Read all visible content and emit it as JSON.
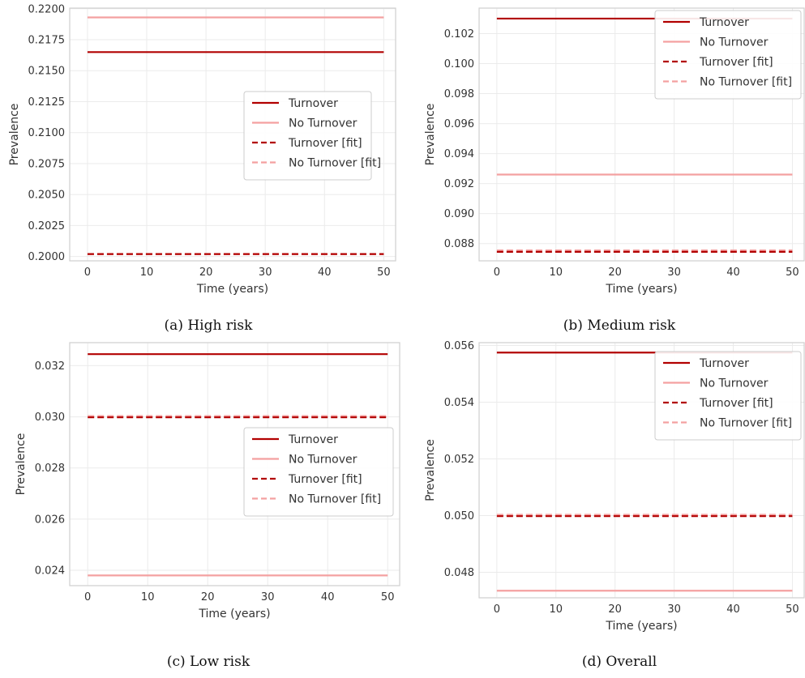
{
  "chart_data": [
    {
      "type": "line",
      "caption": "(a) High risk",
      "xlabel": "Time (years)",
      "ylabel": "Prevalence",
      "xlim": [
        -3,
        52
      ],
      "ylim": [
        0.19965,
        0.22005
      ],
      "xticks": [
        0,
        10,
        20,
        30,
        40,
        50
      ],
      "yticks": [
        0.2,
        0.2025,
        0.205,
        0.2075,
        0.21,
        0.2125,
        0.215,
        0.2175,
        0.22
      ],
      "ytick_labels": [
        "0.2000",
        "0.2025",
        "0.2050",
        "0.2075",
        "0.2100",
        "0.2125",
        "0.2150",
        "0.2175",
        "0.2200"
      ],
      "grid": true,
      "legend_position": "center-right",
      "series": [
        {
          "name": "Turnover",
          "color": "#b20000",
          "dash": "solid",
          "x": [
            0,
            50
          ],
          "y": [
            0.2165,
            0.2165
          ]
        },
        {
          "name": "No Turnover",
          "color": "#f4a0a0",
          "dash": "solid",
          "x": [
            0,
            50
          ],
          "y": [
            0.2193,
            0.2193
          ]
        },
        {
          "name": "Turnover [fit]",
          "color": "#b20000",
          "dash": "dashed",
          "x": [
            0,
            50
          ],
          "y": [
            0.2002,
            0.2002
          ]
        },
        {
          "name": "No Turnover [fit]",
          "color": "#f4a0a0",
          "dash": "dashed",
          "x": [
            0,
            50
          ],
          "y": [
            0.2002,
            0.2002
          ]
        }
      ]
    },
    {
      "type": "line",
      "caption": "(b) Medium risk",
      "xlabel": "Time (years)",
      "ylabel": "Prevalence",
      "xlim": [
        -3,
        52
      ],
      "ylim": [
        0.08685,
        0.1037
      ],
      "xticks": [
        0,
        10,
        20,
        30,
        40,
        50
      ],
      "yticks": [
        0.088,
        0.09,
        0.092,
        0.094,
        0.096,
        0.098,
        0.1,
        0.102
      ],
      "ytick_labels": [
        "0.088",
        "0.090",
        "0.092",
        "0.094",
        "0.096",
        "0.098",
        "0.100",
        "0.102"
      ],
      "grid": true,
      "legend_position": "top-right",
      "series": [
        {
          "name": "Turnover",
          "color": "#b20000",
          "dash": "solid",
          "x": [
            0,
            50
          ],
          "y": [
            0.103,
            0.103
          ]
        },
        {
          "name": "No Turnover",
          "color": "#f4a0a0",
          "dash": "solid",
          "x": [
            0,
            50
          ],
          "y": [
            0.0926,
            0.0926
          ]
        },
        {
          "name": "Turnover [fit]",
          "color": "#b20000",
          "dash": "dashed",
          "x": [
            0,
            50
          ],
          "y": [
            0.08745,
            0.08745
          ]
        },
        {
          "name": "No Turnover [fit]",
          "color": "#f4a0a0",
          "dash": "dashed",
          "x": [
            0,
            50
          ],
          "y": [
            0.08755,
            0.08755
          ]
        }
      ]
    },
    {
      "type": "line",
      "caption": "(c) Low risk",
      "xlabel": "Time (years)",
      "ylabel": "Prevalence",
      "xlim": [
        -3,
        52
      ],
      "ylim": [
        0.0234,
        0.0329
      ],
      "xticks": [
        0,
        10,
        20,
        30,
        40,
        50
      ],
      "yticks": [
        0.024,
        0.026,
        0.028,
        0.03,
        0.032
      ],
      "ytick_labels": [
        "0.024",
        "0.026",
        "0.028",
        "0.030",
        "0.032"
      ],
      "grid": true,
      "legend_position": "center-right",
      "series": [
        {
          "name": "Turnover",
          "color": "#b20000",
          "dash": "solid",
          "x": [
            0,
            50
          ],
          "y": [
            0.03245,
            0.03245
          ]
        },
        {
          "name": "No Turnover",
          "color": "#f4a0a0",
          "dash": "solid",
          "x": [
            0,
            50
          ],
          "y": [
            0.0238,
            0.0238
          ]
        },
        {
          "name": "Turnover [fit]",
          "color": "#b20000",
          "dash": "dashed",
          "x": [
            0,
            50
          ],
          "y": [
            0.02998,
            0.02998
          ]
        },
        {
          "name": "No Turnover [fit]",
          "color": "#f4a0a0",
          "dash": "dashed",
          "x": [
            0,
            50
          ],
          "y": [
            0.03003,
            0.03003
          ]
        }
      ]
    },
    {
      "type": "line",
      "caption": "(d) Overall",
      "xlabel": "Time (years)",
      "ylabel": "Prevalence",
      "xlim": [
        -3,
        52
      ],
      "ylim": [
        0.0471,
        0.0561
      ],
      "xticks": [
        0,
        10,
        20,
        30,
        40,
        50
      ],
      "yticks": [
        0.048,
        0.05,
        0.052,
        0.054,
        0.056
      ],
      "ytick_labels": [
        "0.048",
        "0.050",
        "0.052",
        "0.054",
        "0.056"
      ],
      "grid": true,
      "legend_position": "top-right",
      "series": [
        {
          "name": "Turnover",
          "color": "#b20000",
          "dash": "solid",
          "x": [
            0,
            50
          ],
          "y": [
            0.05575,
            0.05575
          ]
        },
        {
          "name": "No Turnover",
          "color": "#f4a0a0",
          "dash": "solid",
          "x": [
            0,
            50
          ],
          "y": [
            0.04735,
            0.04735
          ]
        },
        {
          "name": "Turnover [fit]",
          "color": "#b20000",
          "dash": "dashed",
          "x": [
            0,
            50
          ],
          "y": [
            0.04998,
            0.04998
          ]
        },
        {
          "name": "No Turnover [fit]",
          "color": "#f4a0a0",
          "dash": "dashed",
          "x": [
            0,
            50
          ],
          "y": [
            0.05003,
            0.05003
          ]
        }
      ]
    }
  ]
}
